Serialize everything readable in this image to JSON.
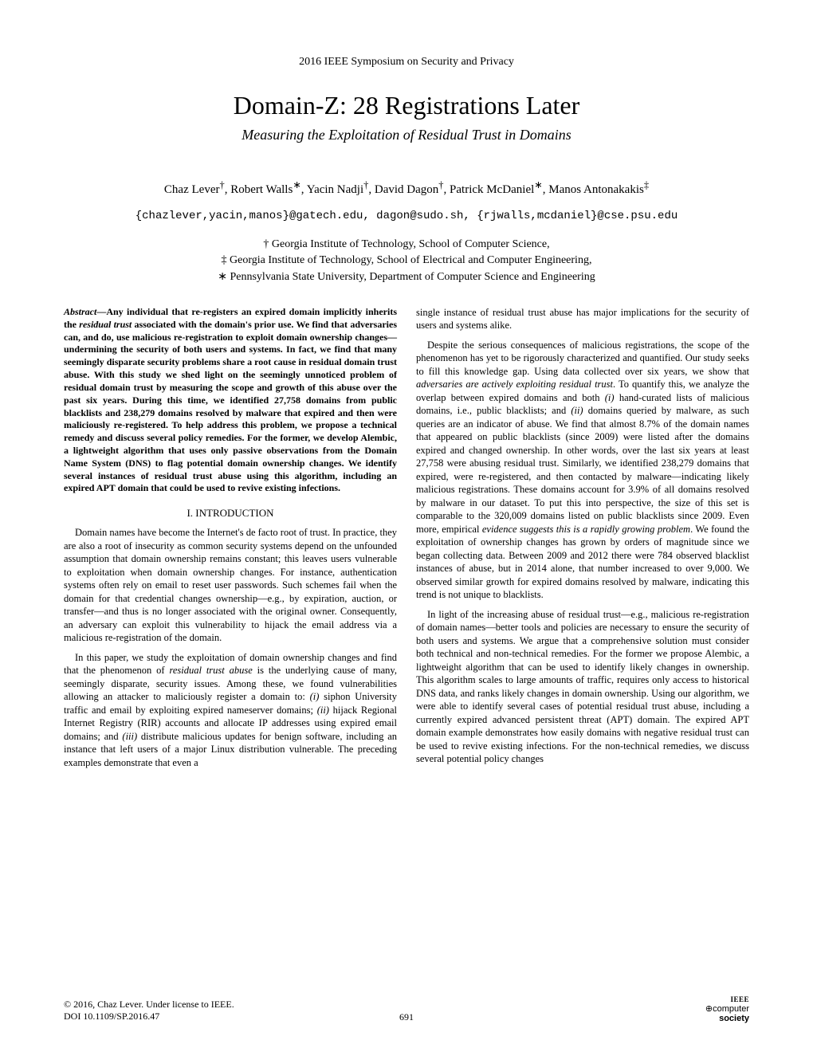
{
  "conference": "2016 IEEE Symposium on Security and Privacy",
  "title": "Domain-Z: 28 Registrations Later",
  "subtitle": "Measuring the Exploitation of Residual Trust in Domains",
  "authors_html": "Chaz Lever<sup>†</sup>, Robert Walls<sup>∗</sup>, Yacin Nadji<sup>†</sup>, David Dagon<sup>†</sup>, Patrick McDaniel<sup>∗</sup>, Manos Antonakakis<sup>‡</sup>",
  "emails": "{chazlever,yacin,manos}@gatech.edu, dagon@sudo.sh, {rjwalls,mcdaniel}@cse.psu.edu",
  "affiliations": [
    "† Georgia Institute of Technology, School of Computer Science,",
    "‡ Georgia Institute of Technology, School of Electrical and Computer Engineering,",
    "∗ Pennsylvania State University, Department of Computer Science and Engineering"
  ],
  "abstract_html": "<span class='label'>Abstract</span>—Any individual that re-registers an expired domain implicitly inherits the <span class='italic'>residual trust</span> associated with the domain's prior use. We find that adversaries can, and do, use malicious re-registration to exploit domain ownership changes—undermining the security of both users and systems. In fact, we find that many seemingly disparate security problems share a root cause in residual domain trust abuse. With this study we shed light on the seemingly unnoticed problem of residual domain trust by measuring the scope and growth of this abuse over the past six years. During this time, we identified 27,758 domains from public blacklists and 238,279 domains resolved by malware that expired and then were maliciously re-registered. To help address this problem, we propose a technical remedy and discuss several policy remedies. For the former, we develop Alembic, a lightweight algorithm that uses only passive observations from the Domain Name System (DNS) to flag potential domain ownership changes. We identify several instances of residual trust abuse using this algorithm, including an expired APT domain that could be used to revive existing infections.",
  "section1": "I.   INTRODUCTION",
  "left_paras": [
    "Domain names have become the Internet's de facto root of trust. In practice, they are also a root of insecurity as common security systems depend on the unfounded assumption that domain ownership remains constant; this leaves users vulnerable to exploitation when domain ownership changes. For instance, authentication systems often rely on email to reset user passwords. Such schemes fail when the domain for that credential changes ownership—e.g., by expiration, auction, or transfer—and thus is no longer associated with the original owner. Consequently, an adversary can exploit this vulnerability to hijack the email address via a malicious re-registration of the domain.",
    "In this paper, we study the exploitation of domain ownership changes and find that the phenomenon of <span class='italic'>residual trust abuse</span> is the underlying cause of many, seemingly disparate, security issues. Among these, we found vulnerabilities allowing an attacker to maliciously register a domain to: <span class='italic'>(i)</span> siphon University traffic and email by exploiting expired nameserver domains; <span class='italic'>(ii)</span> hijack Regional Internet Registry (RIR) accounts and allocate IP addresses using expired email domains; and <span class='italic'>(iii)</span> distribute malicious updates for benign software, including an instance that left users of a major Linux distribution vulnerable. The preceding examples demonstrate that even a"
  ],
  "right_paras": [
    "single instance of residual trust abuse has major implications for the security of users and systems alike.",
    "Despite the serious consequences of malicious registrations, the scope of the phenomenon has yet to be rigorously characterized and quantified. Our study seeks to fill this knowledge gap. Using data collected over six years, we show that <span class='italic'>adversaries are actively exploiting residual trust</span>. To quantify this, we analyze the overlap between expired domains and both <span class='italic'>(i)</span> hand-curated lists of malicious domains, i.e., public blacklists; and <span class='italic'>(ii)</span> domains queried by malware, as such queries are an indicator of abuse. We find that almost 8.7% of the domain names that appeared on public blacklists (since 2009) were listed after the domains expired and changed ownership. In other words, over the last six years at least 27,758 were abusing residual trust. Similarly, we identified 238,279 domains that expired, were re-registered, and then contacted by malware—indicating likely malicious registrations. These domains account for 3.9% of all domains resolved by malware in our dataset. To put this into perspective, the size of this set is comparable to the 320,009 domains listed on public blacklists since 2009. Even more, empirical <span class='italic'>evidence suggests this is a rapidly growing problem</span>. We found the exploitation of ownership changes has grown by orders of magnitude since we began collecting data. Between 2009 and 2012 there were 784 observed blacklist instances of abuse, but in 2014 alone, that number increased to over 9,000. We observed similar growth for expired domains resolved by malware, indicating this trend is not unique to blacklists.",
    "In light of the increasing abuse of residual trust—e.g., malicious re-registration of domain names—better tools and policies are necessary to ensure the security of both users and systems. We argue that a comprehensive solution must consider both technical and non-technical remedies. For the former we propose Alembic, a lightweight algorithm that can be used to identify likely changes in ownership. This algorithm scales to large amounts of traffic, requires only access to historical DNS data, and ranks likely changes in domain ownership. Using our algorithm, we were able to identify several cases of potential residual trust abuse, including a currently expired advanced persistent threat (APT) domain. The expired APT domain example demonstrates how easily domains with negative residual trust can be used to revive existing infections. For the non-technical remedies, we discuss several potential policy changes"
  ],
  "footer": {
    "copyright": "© 2016, Chaz Lever. Under license to IEEE.",
    "doi": "DOI 10.1109/SP.2016.47",
    "page": "691",
    "ieee": "IEEE",
    "society1": "computer",
    "society2": "society"
  }
}
